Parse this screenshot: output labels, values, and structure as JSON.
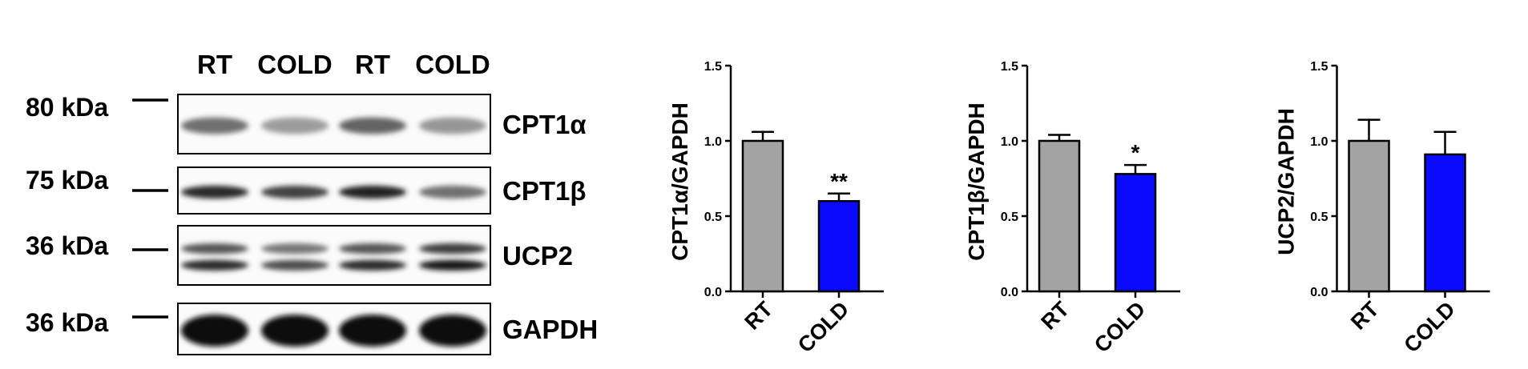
{
  "blot": {
    "lane_labels": [
      "RT",
      "COLD",
      "RT",
      "COLD"
    ],
    "rows": [
      {
        "kda": "80 kDa",
        "protein": "CPT1α",
        "intensity": [
          0.55,
          0.35,
          0.6,
          0.38
        ],
        "bands": 1
      },
      {
        "kda": "75 kDa",
        "protein": "CPT1β",
        "intensity": [
          0.85,
          0.75,
          0.9,
          0.55
        ],
        "bands": 1
      },
      {
        "kda": "36 kDa",
        "protein": "UCP2",
        "intensity": [
          0.85,
          0.7,
          0.85,
          0.95
        ],
        "bands": 2
      },
      {
        "kda": "36 kDa",
        "protein": "GAPDH",
        "intensity": [
          1.0,
          1.0,
          1.0,
          1.0
        ],
        "bands": 1
      }
    ]
  },
  "chart_data": [
    {
      "type": "bar",
      "categories": [
        "RT",
        "COLD"
      ],
      "values": [
        1.0,
        0.6
      ],
      "errors": [
        0.06,
        0.05
      ],
      "colors": [
        "#a3a3a3",
        "#0a0aff"
      ],
      "significance": [
        "",
        "**"
      ],
      "ylabel": "CPT1α/GAPDH",
      "ylim": [
        0,
        1.5
      ],
      "yticks": [
        "0.0",
        "0.5",
        "1.0",
        "1.5"
      ]
    },
    {
      "type": "bar",
      "categories": [
        "RT",
        "COLD"
      ],
      "values": [
        1.0,
        0.78
      ],
      "errors": [
        0.04,
        0.06
      ],
      "colors": [
        "#a3a3a3",
        "#0a0aff"
      ],
      "significance": [
        "",
        "*"
      ],
      "ylabel": "CPT1β/GAPDH",
      "ylim": [
        0,
        1.5
      ],
      "yticks": [
        "0.0",
        "0.5",
        "1.0",
        "1.5"
      ]
    },
    {
      "type": "bar",
      "categories": [
        "RT",
        "COLD"
      ],
      "values": [
        1.0,
        0.91
      ],
      "errors": [
        0.14,
        0.15
      ],
      "colors": [
        "#a3a3a3",
        "#0a0aff"
      ],
      "significance": [
        "",
        ""
      ],
      "ylabel": "UCP2/GAPDH",
      "ylim": [
        0,
        1.5
      ],
      "yticks": [
        "0.0",
        "0.5",
        "1.0",
        "1.5"
      ]
    }
  ]
}
